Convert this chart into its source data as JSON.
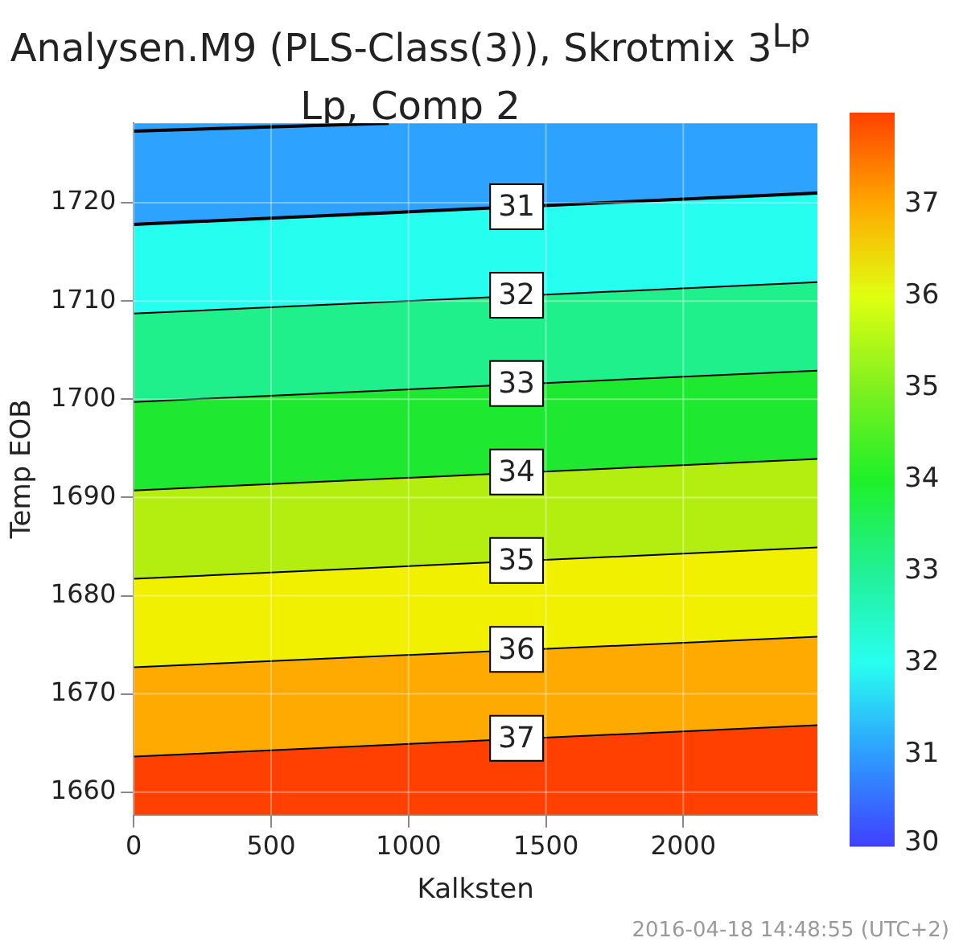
{
  "chart_data": {
    "type": "area",
    "title": "Analysen.M9 (PLS-Class(3)), Skrotmix 3$^{Lp}$",
    "subtitle": "Lp, Comp 2",
    "xlabel": "Kalksten",
    "ylabel": "Temp EOB",
    "annotations": [
      "2016-04-18 14:48:55 (UTC+2)"
    ],
    "series": [
      {
        "type": "line",
        "color": "#000000",
        "x": [
          0,
          928
        ],
        "values": [
          1727.3,
          1728.1
        ]
      },
      {
        "name": "31",
        "color": "#26fff0",
        "x": [
          0,
          2488
        ],
        "values": [
          1717.8,
          1721.0
        ]
      },
      {
        "name": "32",
        "color": "#20f08c",
        "x": [
          0,
          2488
        ],
        "values": [
          1708.8,
          1712.0
        ]
      },
      {
        "name": "33",
        "color": "#1ee830",
        "x": [
          0,
          2488
        ],
        "values": [
          1699.8,
          1703.0
        ]
      },
      {
        "name": "34",
        "color": "#b4ee10",
        "x": [
          0,
          2488
        ],
        "values": [
          1690.8,
          1694.0
        ]
      },
      {
        "name": "35",
        "color": "#f0f000",
        "x": [
          0,
          2488
        ],
        "values": [
          1681.8,
          1685.0
        ]
      },
      {
        "name": "36",
        "color": "#ffaa00",
        "x": [
          0,
          2488
        ],
        "values": [
          1672.8,
          1675.9
        ]
      },
      {
        "name": "37",
        "color": "#ff4000",
        "x": [
          0,
          2488
        ],
        "values": [
          1663.7,
          1666.9
        ]
      }
    ],
    "bands": [
      {
        "axis": "y",
        "from": 1717.8,
        "to": 1728.1,
        "color": "#2ea2ff"
      }
    ],
    "xlim": [
      0,
      2488
    ],
    "xticks": [
      0,
      500,
      1000,
      1500,
      2000
    ],
    "ylim": [
      1657.7,
      1728.1
    ],
    "yticks": [
      1660,
      1670,
      1680,
      1690,
      1700,
      1710,
      1720
    ],
    "clim": [
      30,
      38
    ],
    "cticks": [
      30,
      31,
      32,
      33,
      34,
      35,
      36,
      37
    ],
    "grid": true,
    "legend": false
  }
}
